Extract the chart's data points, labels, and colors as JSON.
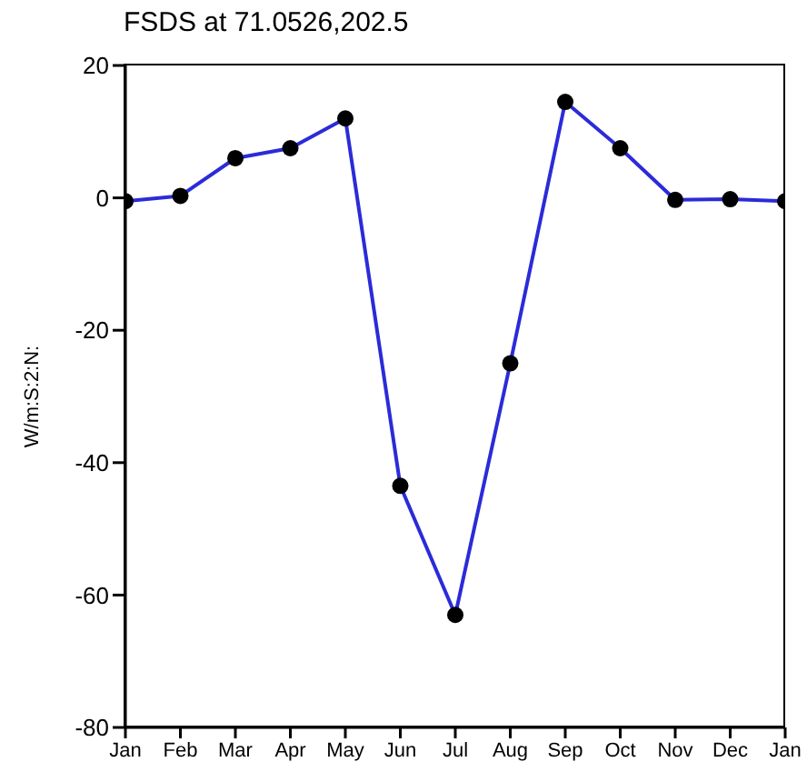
{
  "chart_data": {
    "type": "line",
    "title": "FSDS at 71.0526,202.5",
    "ylabel": "W/m:S:2:N:",
    "categories": [
      "Jan",
      "Feb",
      "Mar",
      "Apr",
      "May",
      "Jun",
      "Jul",
      "Aug",
      "Sep",
      "Oct",
      "Nov",
      "Dec",
      "Jan"
    ],
    "series": [
      {
        "color": "#2b2bd9",
        "values": [
          -0.5,
          0.3,
          6,
          7.5,
          12,
          -43.5,
          -63,
          -25,
          14.5,
          7.5,
          -0.3,
          -0.2,
          -0.5
        ]
      }
    ],
    "ylim": [
      -80,
      20
    ],
    "yticks": [
      -80,
      -60,
      -40,
      -20,
      0,
      20
    ],
    "marker": "circle",
    "legend": false
  }
}
